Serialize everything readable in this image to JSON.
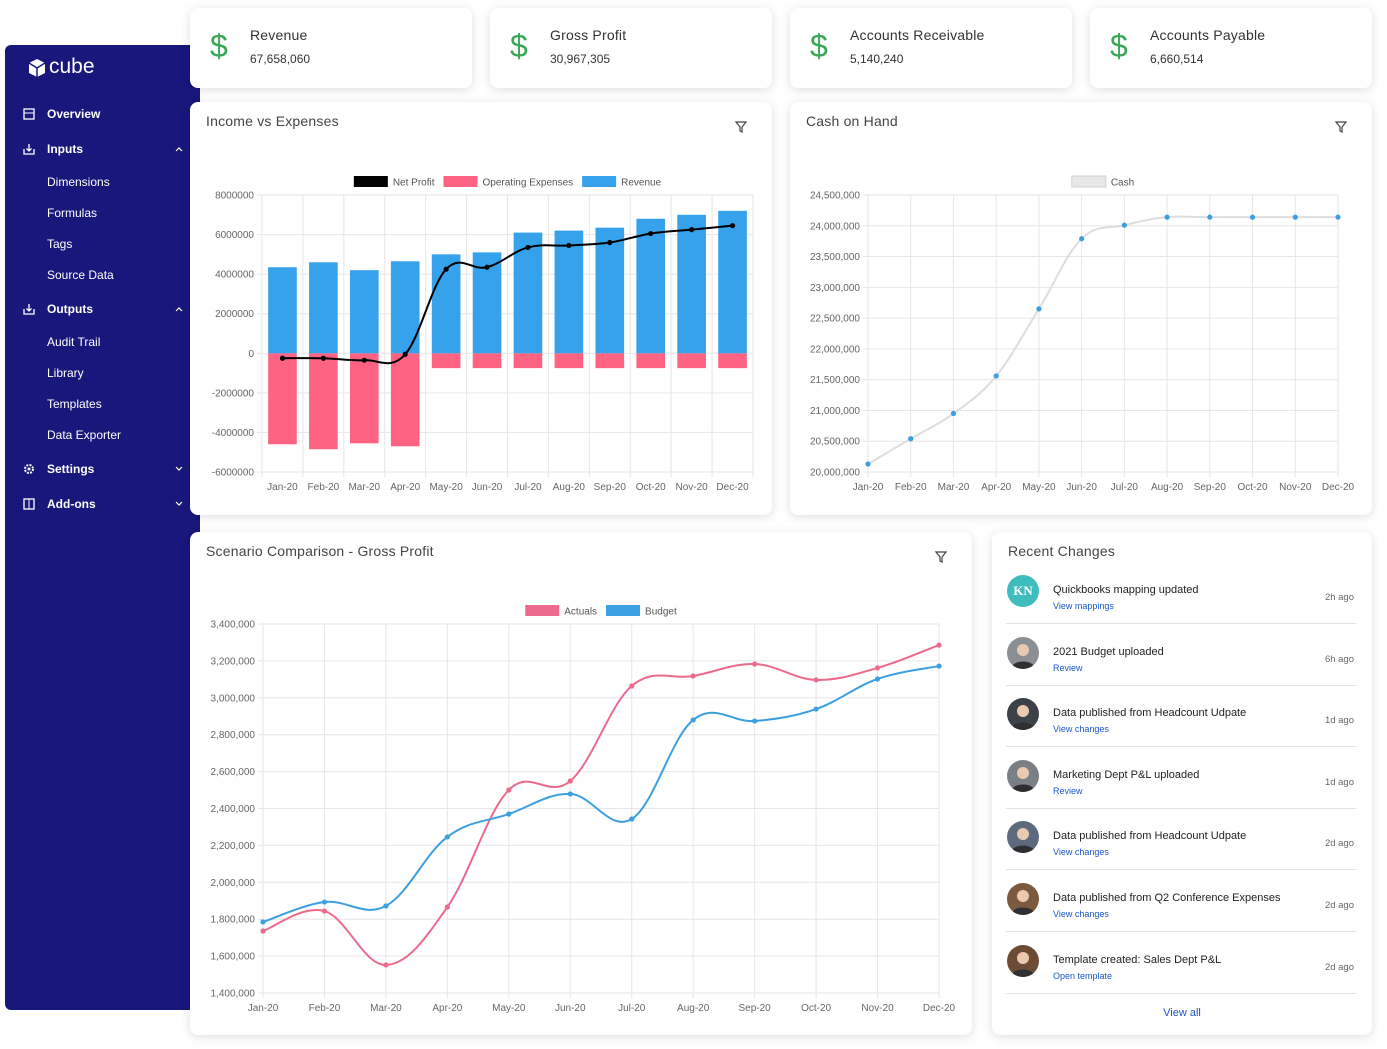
{
  "sidebar": {
    "logo": "cube",
    "nav": [
      {
        "label": "Overview"
      },
      {
        "label": "Inputs",
        "expanded": true,
        "children": [
          "Dimensions",
          "Formulas",
          "Tags",
          "Source Data"
        ]
      },
      {
        "label": "Outputs",
        "expanded": true,
        "children": [
          "Audit Trail",
          "Library",
          "Templates",
          "Data Exporter"
        ]
      },
      {
        "label": "Settings",
        "expanded": false
      },
      {
        "label": "Add-ons",
        "expanded": false
      }
    ]
  },
  "kpis": [
    {
      "symbol": "$",
      "label": "Revenue",
      "value": "67,658,060"
    },
    {
      "symbol": "$",
      "label": "Gross Profit",
      "value": "30,967,305"
    },
    {
      "symbol": "$",
      "label": "Accounts Receivable",
      "value": "5,140,240"
    },
    {
      "symbol": "$",
      "label": "Accounts Payable",
      "value": "6,660,514"
    }
  ],
  "chart_data": [
    {
      "type": "bar",
      "title": "Income vs Expenses",
      "categories": [
        "Jan-20",
        "Feb-20",
        "Mar-20",
        "Apr-20",
        "May-20",
        "Jun-20",
        "Jul-20",
        "Aug-20",
        "Sep-20",
        "Oct-20",
        "Nov-20",
        "Dec-20"
      ],
      "series": [
        {
          "name": "Net Profit",
          "type": "line",
          "color": "#000000",
          "values": [
            -250000,
            -250000,
            -350000,
            -50000,
            4250000,
            4350000,
            5350000,
            5450000,
            5600000,
            6050000,
            6250000,
            6450000
          ]
        },
        {
          "name": "Operating Expenses",
          "type": "bar",
          "color": "#ff6384",
          "values": [
            -4600000,
            -4850000,
            -4550000,
            -4700000,
            -750000,
            -750000,
            -750000,
            -750000,
            -750000,
            -750000,
            -750000,
            -750000
          ]
        },
        {
          "name": "Revenue",
          "type": "bar",
          "color": "#36a2eb",
          "values": [
            4350000,
            4600000,
            4200000,
            4650000,
            5000000,
            5100000,
            6100000,
            6200000,
            6350000,
            6800000,
            7000000,
            7200000
          ]
        }
      ],
      "ylim": [
        -6000000,
        8000000
      ],
      "yticks": [
        -6000000,
        -4000000,
        -2000000,
        0,
        2000000,
        4000000,
        6000000,
        8000000
      ],
      "grid": true,
      "legend": "top"
    },
    {
      "type": "line",
      "title": "Cash on Hand",
      "categories": [
        "Jan-20",
        "Feb-20",
        "Mar-20",
        "Apr-20",
        "May-20",
        "Jun-20",
        "Jul-20",
        "Aug-20",
        "Sep-20",
        "Oct-20",
        "Nov-20",
        "Dec-20"
      ],
      "series": [
        {
          "name": "Cash",
          "color": "#dddddd",
          "marker_color": "#3b9fe0",
          "values": [
            20130000,
            20540000,
            20950000,
            21560000,
            22650000,
            23790000,
            24010000,
            24140000,
            24140000,
            24140000,
            24140000,
            24140000
          ]
        }
      ],
      "ylim": [
        20000000,
        24500000
      ],
      "yticks": [
        {
          "value": 20000000,
          "label": "20,000,000"
        },
        {
          "value": 20500000,
          "label": "20,500,000"
        },
        {
          "value": 21000000,
          "label": "21,000,000"
        },
        {
          "value": 21500000,
          "label": "21,500,000"
        },
        {
          "value": 22000000,
          "label": "22,000,000"
        },
        {
          "value": 22500000,
          "label": "22,500,000"
        },
        {
          "value": 23000000,
          "label": "23,000,000"
        },
        {
          "value": 23500000,
          "label": "23,500,000"
        },
        {
          "value": 24000000,
          "label": "24,000,000"
        },
        {
          "value": 24500000,
          "label": "24,500,000"
        }
      ],
      "grid": true,
      "legend": "top"
    },
    {
      "type": "line",
      "title": "Scenario Comparison - Gross Profit",
      "categories": [
        "Jan-20",
        "Feb-20",
        "Mar-20",
        "Apr-20",
        "May-20",
        "Jun-20",
        "Jul-20",
        "Aug-20",
        "Sep-20",
        "Oct-20",
        "Nov-20",
        "Dec-20"
      ],
      "series": [
        {
          "name": "Actuals",
          "color": "#ec6a8c",
          "values": [
            1736000,
            1844000,
            1552000,
            1866000,
            2500000,
            2549000,
            3064000,
            3118000,
            3183000,
            3097000,
            3162000,
            3286000
          ]
        },
        {
          "name": "Budget",
          "color": "#3b9fe0",
          "values": [
            1785000,
            1893000,
            1872000,
            2246000,
            2370000,
            2479000,
            2343000,
            2880000,
            2874000,
            2939000,
            3102000,
            3172000
          ]
        }
      ],
      "ylim": [
        1400000,
        3400000
      ],
      "yticks": [
        {
          "value": 1400000,
          "label": "1,400,000"
        },
        {
          "value": 1600000,
          "label": "1,600,000"
        },
        {
          "value": 1800000,
          "label": "1,800,000"
        },
        {
          "value": 2000000,
          "label": "2,000,000"
        },
        {
          "value": 2200000,
          "label": "2,200,000"
        },
        {
          "value": 2400000,
          "label": "2,400,000"
        },
        {
          "value": 2600000,
          "label": "2,600,000"
        },
        {
          "value": 2800000,
          "label": "2,800,000"
        },
        {
          "value": 3000000,
          "label": "3,000,000"
        },
        {
          "value": 3200000,
          "label": "3,200,000"
        },
        {
          "value": 3400000,
          "label": "3,400,000"
        }
      ],
      "grid": true,
      "legend": "top"
    }
  ],
  "recent_changes": {
    "title": "Recent Changes",
    "items": [
      {
        "initials": "KN",
        "title": "Quickbooks mapping updated",
        "link": "View mappings",
        "time": "2h ago"
      },
      {
        "title": "2021 Budget uploaded",
        "link": "Review",
        "time": "6h ago"
      },
      {
        "title": "Data published from Headcount Udpate",
        "link": "View changes",
        "time": "1d ago"
      },
      {
        "title": "Marketing Dept P&L uploaded",
        "link": "Review",
        "time": "1d ago"
      },
      {
        "title": "Data published from Headcount Udpate",
        "link": "View changes",
        "time": "2d ago"
      },
      {
        "title": "Data published from Q2 Conference Expenses",
        "link": "View changes",
        "time": "2d ago"
      },
      {
        "title": "Template created: Sales Dept P&L",
        "link": "Open template",
        "time": "2d ago"
      }
    ],
    "footer": "View all"
  }
}
